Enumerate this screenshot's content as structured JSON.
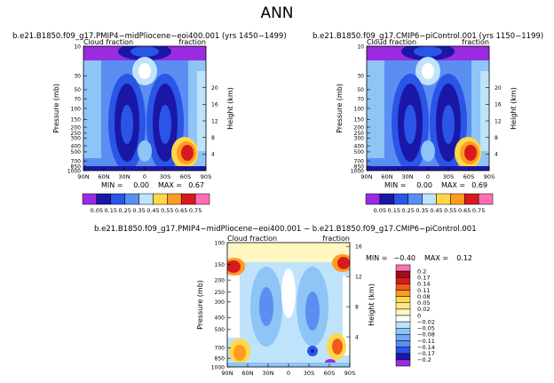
{
  "page_title": "ANN",
  "colors": {
    "purple": "#9b2be0",
    "navy": "#1b17a6",
    "blue": "#2a55e6",
    "mid_blue": "#5a8ef2",
    "light_blue": "#8ec4f6",
    "pale_blue": "#bfe3fb",
    "white": "#ffffff",
    "cream": "#fff7c2",
    "yellow": "#ffd84a",
    "orange": "#ff9b1f",
    "red_orange": "#f25a1b",
    "red": "#d71b1b",
    "dark_red": "#9b0f18",
    "pink": "#ff6fb4"
  },
  "chart_data": [
    {
      "type": "heatmap",
      "id": "panel1",
      "title": "b.e21.B1850.f09_g17.PMIP4−midPliocene−eoi400.001  (yrs 1450−1499)",
      "left_label": "Cloud fraction",
      "right_label": "fraction",
      "ylabel": "Pressure  (mb)",
      "y2label": "Height  (km)",
      "x_ticks": [
        "90N",
        "60N",
        "30N",
        "0",
        "30S",
        "60S",
        "90S"
      ],
      "y_ticks": [
        "10",
        "30",
        "50",
        "70",
        "100",
        "150",
        "200",
        "250",
        "300",
        "400",
        "500",
        "700",
        "850",
        "1000"
      ],
      "y2_ticks": [
        "20",
        "16",
        "12",
        "8",
        "4"
      ],
      "min_label": "MIN =",
      "min_value": "0.00",
      "max_label": "MAX =",
      "max_value": "0.67",
      "colorbar_labels": [
        "0.05",
        "0.15",
        "0.25",
        "0.35",
        "0.45",
        "0.55",
        "0.65",
        "0.75"
      ]
    },
    {
      "type": "heatmap",
      "id": "panel2",
      "title": "b.e21.B1850.f09_g17.CMIP6−piControl.001  (yrs 1150−1199)",
      "left_label": "Cloud fraction",
      "right_label": "fraction",
      "ylabel": "Pressure  (mb)",
      "y2label": "Height  (km)",
      "x_ticks": [
        "90N",
        "60N",
        "30N",
        "0",
        "30S",
        "60S",
        "90S"
      ],
      "y_ticks": [
        "10",
        "30",
        "50",
        "70",
        "100",
        "150",
        "200",
        "250",
        "300",
        "400",
        "500",
        "700",
        "850",
        "1000"
      ],
      "y2_ticks": [
        "20",
        "16",
        "12",
        "8",
        "4"
      ],
      "min_label": "MIN =",
      "min_value": "0.00",
      "max_label": "MAX =",
      "max_value": "0.69",
      "colorbar_labels": [
        "0.05",
        "0.15",
        "0.25",
        "0.35",
        "0.45",
        "0.55",
        "0.65",
        "0.75"
      ]
    },
    {
      "type": "heatmap",
      "id": "panel3",
      "title": "b.e21.B1850.f09_g17.PMIP4−midPliocene−eoi400.001  −  b.e21.B1850.f09_g17.CMIP6−piControl.001",
      "left_label": "Cloud fraction",
      "right_label": "fraction",
      "ylabel": "Pressure  (mb)",
      "y2label": "Height  (km)",
      "x_ticks": [
        "90N",
        "60N",
        "30N",
        "0",
        "30S",
        "60S",
        "90S"
      ],
      "y_ticks": [
        "100",
        "150",
        "200",
        "250",
        "300",
        "400",
        "500",
        "700",
        "850",
        "1000"
      ],
      "y2_ticks": [
        "16",
        "12",
        "8",
        "4"
      ],
      "min_label": "MIN =",
      "min_value": "−0.40",
      "max_label": "MAX =",
      "max_value": "0.12",
      "colorbar_labels": [
        "0.2",
        "0.17",
        "0.14",
        "0.11",
        "0.08",
        "0.05",
        "0.02",
        "0",
        "−0.02",
        "−0.05",
        "−0.08",
        "−0.11",
        "−0.14",
        "−0.17",
        "−0.2"
      ]
    }
  ]
}
